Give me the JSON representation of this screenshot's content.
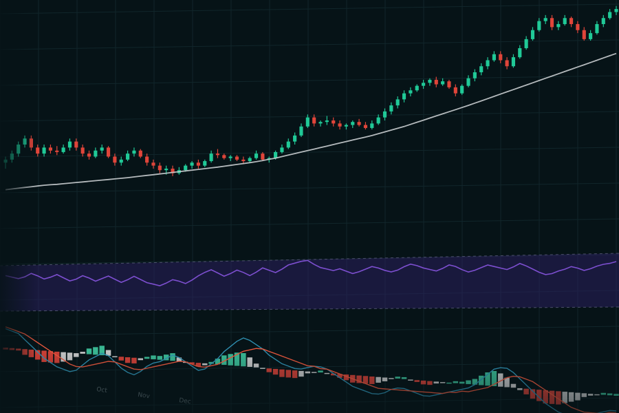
{
  "colors": {
    "background": "#061317",
    "grid": "#11262b",
    "bull": "#20c997",
    "bear": "#e0453a",
    "moving_average": "#c9cdcf",
    "oscillator": "#7d4fd0",
    "oscillator_band": "#2a1f5c",
    "macd_line": "#2f8fb0",
    "signal_line": "#e8573d",
    "hist_pos": "#3fc9a0",
    "hist_neg": "#e0453a",
    "hist_fade": "#d7d7d7"
  },
  "chart_data": [
    {
      "type": "candlestick",
      "panel": "price",
      "candles": [
        {
          "o": 52,
          "h": 56,
          "l": 48,
          "c": 54
        },
        {
          "o": 54,
          "h": 60,
          "l": 52,
          "c": 58
        },
        {
          "o": 58,
          "h": 66,
          "l": 56,
          "c": 64
        },
        {
          "o": 64,
          "h": 70,
          "l": 62,
          "c": 68
        },
        {
          "o": 68,
          "h": 70,
          "l": 60,
          "c": 62
        },
        {
          "o": 62,
          "h": 64,
          "l": 56,
          "c": 58
        },
        {
          "o": 58,
          "h": 64,
          "l": 56,
          "c": 62
        },
        {
          "o": 62,
          "h": 64,
          "l": 58,
          "c": 60
        },
        {
          "o": 60,
          "h": 63,
          "l": 57,
          "c": 59
        },
        {
          "o": 59,
          "h": 64,
          "l": 58,
          "c": 62
        },
        {
          "o": 62,
          "h": 68,
          "l": 60,
          "c": 66
        },
        {
          "o": 66,
          "h": 68,
          "l": 60,
          "c": 62
        },
        {
          "o": 62,
          "h": 64,
          "l": 56,
          "c": 58
        },
        {
          "o": 58,
          "h": 60,
          "l": 54,
          "c": 56
        },
        {
          "o": 56,
          "h": 62,
          "l": 55,
          "c": 60
        },
        {
          "o": 60,
          "h": 64,
          "l": 58,
          "c": 62
        },
        {
          "o": 62,
          "h": 63,
          "l": 55,
          "c": 56
        },
        {
          "o": 56,
          "h": 58,
          "l": 50,
          "c": 52
        },
        {
          "o": 52,
          "h": 56,
          "l": 50,
          "c": 54
        },
        {
          "o": 54,
          "h": 60,
          "l": 53,
          "c": 58
        },
        {
          "o": 58,
          "h": 62,
          "l": 56,
          "c": 60
        },
        {
          "o": 60,
          "h": 61,
          "l": 55,
          "c": 56
        },
        {
          "o": 56,
          "h": 58,
          "l": 50,
          "c": 52
        },
        {
          "o": 52,
          "h": 54,
          "l": 48,
          "c": 50
        },
        {
          "o": 50,
          "h": 52,
          "l": 45,
          "c": 47
        },
        {
          "o": 47,
          "h": 50,
          "l": 44,
          "c": 48
        },
        {
          "o": 48,
          "h": 50,
          "l": 43,
          "c": 45
        },
        {
          "o": 45,
          "h": 49,
          "l": 44,
          "c": 47
        },
        {
          "o": 47,
          "h": 51,
          "l": 46,
          "c": 50
        },
        {
          "o": 50,
          "h": 53,
          "l": 48,
          "c": 52
        },
        {
          "o": 52,
          "h": 54,
          "l": 48,
          "c": 50
        },
        {
          "o": 50,
          "h": 54,
          "l": 49,
          "c": 53
        },
        {
          "o": 53,
          "h": 60,
          "l": 52,
          "c": 58
        },
        {
          "o": 58,
          "h": 61,
          "l": 55,
          "c": 57
        },
        {
          "o": 57,
          "h": 58,
          "l": 54,
          "c": 55
        },
        {
          "o": 55,
          "h": 57,
          "l": 53,
          "c": 56
        },
        {
          "o": 56,
          "h": 57,
          "l": 53,
          "c": 54
        },
        {
          "o": 54,
          "h": 56,
          "l": 51,
          "c": 53
        },
        {
          "o": 53,
          "h": 56,
          "l": 52,
          "c": 55
        },
        {
          "o": 55,
          "h": 60,
          "l": 54,
          "c": 58
        },
        {
          "o": 58,
          "h": 59,
          "l": 53,
          "c": 54
        },
        {
          "o": 54,
          "h": 56,
          "l": 52,
          "c": 55
        },
        {
          "o": 55,
          "h": 60,
          "l": 54,
          "c": 59
        },
        {
          "o": 59,
          "h": 64,
          "l": 58,
          "c": 62
        },
        {
          "o": 62,
          "h": 68,
          "l": 61,
          "c": 66
        },
        {
          "o": 66,
          "h": 72,
          "l": 64,
          "c": 70
        },
        {
          "o": 70,
          "h": 78,
          "l": 69,
          "c": 76
        },
        {
          "o": 76,
          "h": 84,
          "l": 75,
          "c": 82
        },
        {
          "o": 82,
          "h": 84,
          "l": 76,
          "c": 78
        },
        {
          "o": 78,
          "h": 80,
          "l": 76,
          "c": 79
        },
        {
          "o": 79,
          "h": 83,
          "l": 77,
          "c": 80
        },
        {
          "o": 80,
          "h": 82,
          "l": 76,
          "c": 78
        },
        {
          "o": 78,
          "h": 80,
          "l": 74,
          "c": 76
        },
        {
          "o": 76,
          "h": 78,
          "l": 74,
          "c": 77
        },
        {
          "o": 77,
          "h": 80,
          "l": 75,
          "c": 79
        },
        {
          "o": 79,
          "h": 81,
          "l": 76,
          "c": 77
        },
        {
          "o": 77,
          "h": 79,
          "l": 74,
          "c": 75
        },
        {
          "o": 75,
          "h": 80,
          "l": 74,
          "c": 78
        },
        {
          "o": 78,
          "h": 84,
          "l": 77,
          "c": 82
        },
        {
          "o": 82,
          "h": 88,
          "l": 80,
          "c": 86
        },
        {
          "o": 86,
          "h": 92,
          "l": 84,
          "c": 90
        },
        {
          "o": 90,
          "h": 96,
          "l": 88,
          "c": 94
        },
        {
          "o": 94,
          "h": 100,
          "l": 92,
          "c": 98
        },
        {
          "o": 98,
          "h": 102,
          "l": 96,
          "c": 100
        },
        {
          "o": 100,
          "h": 104,
          "l": 99,
          "c": 103
        },
        {
          "o": 103,
          "h": 107,
          "l": 101,
          "c": 105
        },
        {
          "o": 105,
          "h": 108,
          "l": 103,
          "c": 107
        },
        {
          "o": 107,
          "h": 109,
          "l": 102,
          "c": 104
        },
        {
          "o": 104,
          "h": 108,
          "l": 103,
          "c": 106
        },
        {
          "o": 106,
          "h": 107,
          "l": 101,
          "c": 102
        },
        {
          "o": 102,
          "h": 104,
          "l": 96,
          "c": 98
        },
        {
          "o": 98,
          "h": 104,
          "l": 97,
          "c": 103
        },
        {
          "o": 103,
          "h": 110,
          "l": 102,
          "c": 108
        },
        {
          "o": 108,
          "h": 114,
          "l": 106,
          "c": 112
        },
        {
          "o": 112,
          "h": 118,
          "l": 110,
          "c": 116
        },
        {
          "o": 116,
          "h": 122,
          "l": 114,
          "c": 120
        },
        {
          "o": 120,
          "h": 126,
          "l": 119,
          "c": 124
        },
        {
          "o": 124,
          "h": 126,
          "l": 118,
          "c": 120
        },
        {
          "o": 120,
          "h": 122,
          "l": 114,
          "c": 116
        },
        {
          "o": 116,
          "h": 124,
          "l": 115,
          "c": 122
        },
        {
          "o": 122,
          "h": 130,
          "l": 121,
          "c": 128
        },
        {
          "o": 128,
          "h": 136,
          "l": 127,
          "c": 134
        },
        {
          "o": 134,
          "h": 142,
          "l": 133,
          "c": 140
        },
        {
          "o": 140,
          "h": 148,
          "l": 139,
          "c": 146
        },
        {
          "o": 146,
          "h": 150,
          "l": 144,
          "c": 148
        },
        {
          "o": 148,
          "h": 150,
          "l": 140,
          "c": 142
        },
        {
          "o": 142,
          "h": 146,
          "l": 140,
          "c": 144
        },
        {
          "o": 144,
          "h": 150,
          "l": 143,
          "c": 148
        },
        {
          "o": 148,
          "h": 149,
          "l": 142,
          "c": 144
        },
        {
          "o": 144,
          "h": 146,
          "l": 138,
          "c": 140
        },
        {
          "o": 140,
          "h": 142,
          "l": 133,
          "c": 134
        },
        {
          "o": 134,
          "h": 140,
          "l": 133,
          "c": 138
        },
        {
          "o": 138,
          "h": 146,
          "l": 137,
          "c": 144
        },
        {
          "o": 144,
          "h": 150,
          "l": 142,
          "c": 148
        },
        {
          "o": 148,
          "h": 154,
          "l": 147,
          "c": 152
        },
        {
          "o": 152,
          "h": 156,
          "l": 150,
          "c": 154
        }
      ],
      "moving_average": [
        34,
        34.5,
        35,
        35.5,
        36,
        36.5,
        37,
        37.3,
        37.6,
        38,
        38.4,
        38.8,
        39.2,
        39.6,
        40,
        40.4,
        40.8,
        41.2,
        41.6,
        42,
        42.5,
        43,
        43.5,
        44,
        44.5,
        45,
        45.5,
        46,
        46.5,
        47,
        47.5,
        48,
        48.5,
        49,
        49.6,
        50.2,
        50.8,
        51.4,
        52,
        52.6,
        53.4,
        54.2,
        55,
        56,
        57,
        58,
        59,
        60,
        61,
        62,
        63,
        64,
        65,
        66,
        67,
        68,
        69,
        70,
        71.2,
        72.4,
        73.6,
        74.8,
        76,
        77.4,
        78.8,
        80.2,
        81.6,
        83,
        84.4,
        85.8,
        87.2,
        88.6,
        90,
        91.5,
        93,
        94.5,
        96,
        97.5,
        99,
        100.5,
        102,
        103.5,
        105,
        106.5,
        108,
        109.5,
        111,
        112.5,
        114,
        115.5,
        117,
        118.5,
        120,
        121.5,
        123,
        124.5
      ],
      "ylim": [
        0,
        160
      ],
      "grid": true
    },
    {
      "type": "line",
      "panel": "oscillator",
      "values": [
        58,
        56,
        54,
        56,
        60,
        57,
        53,
        55,
        58,
        54,
        50,
        52,
        56,
        53,
        49,
        52,
        55,
        51,
        47,
        50,
        54,
        50,
        46,
        44,
        42,
        45,
        49,
        47,
        44,
        48,
        53,
        57,
        60,
        56,
        52,
        55,
        59,
        56,
        52,
        56,
        61,
        58,
        55,
        59,
        64,
        66,
        68,
        69,
        64,
        60,
        58,
        56,
        58,
        55,
        52,
        54,
        57,
        60,
        58,
        55,
        53,
        55,
        59,
        62,
        60,
        57,
        55,
        53,
        56,
        60,
        58,
        54,
        51,
        53,
        56,
        59,
        57,
        55,
        53,
        56,
        60,
        57,
        53,
        49,
        46,
        47,
        50,
        52,
        55,
        53,
        50,
        52,
        55,
        57,
        58,
        60
      ],
      "ylim": [
        0,
        100
      ],
      "band": [
        30,
        70
      ],
      "grid": true
    },
    {
      "type": "line+bar",
      "panel": "macd",
      "macd_line": [
        1.0,
        0.9,
        0.8,
        0.5,
        0.2,
        -0.1,
        -0.4,
        -0.6,
        -0.8,
        -0.9,
        -1.0,
        -0.9,
        -0.6,
        -0.3,
        -0.1,
        0.1,
        0.0,
        -0.3,
        -0.6,
        -0.8,
        -0.9,
        -0.7,
        -0.4,
        -0.2,
        -0.1,
        0.1,
        0.3,
        0.2,
        0.0,
        -0.2,
        -0.4,
        -0.3,
        0.0,
        0.3,
        0.7,
        1.0,
        1.3,
        1.5,
        1.4,
        1.2,
        1.0,
        0.7,
        0.5,
        0.3,
        0.2,
        0.1,
        0.1,
        0.2,
        0.3,
        0.3,
        0.2,
        0.0,
        -0.2,
        -0.4,
        -0.6,
        -0.7,
        -0.8,
        -0.9,
        -0.9,
        -0.8,
        -0.6,
        -0.5,
        -0.5,
        -0.6,
        -0.7,
        -0.8,
        -0.8,
        -0.7,
        -0.6,
        -0.5,
        -0.4,
        -0.3,
        -0.2,
        0.0,
        0.3,
        0.6,
        0.9,
        1.0,
        1.0,
        0.8,
        0.5,
        0.2,
        -0.1,
        -0.4,
        -0.7,
        -0.9,
        -1.1,
        -1.2,
        -1.3,
        -1.3,
        -1.2,
        -1.1,
        -1.0,
        -0.9,
        -0.8,
        -0.8
      ],
      "signal_line": [
        1.1,
        1.0,
        0.9,
        0.8,
        0.6,
        0.4,
        0.2,
        0.0,
        -0.2,
        -0.4,
        -0.6,
        -0.7,
        -0.7,
        -0.6,
        -0.5,
        -0.4,
        -0.3,
        -0.3,
        -0.4,
        -0.5,
        -0.6,
        -0.6,
        -0.5,
        -0.4,
        -0.3,
        -0.2,
        -0.1,
        0.0,
        0.0,
        -0.1,
        -0.2,
        -0.2,
        -0.1,
        0.0,
        0.2,
        0.4,
        0.6,
        0.8,
        0.9,
        1.0,
        1.0,
        0.9,
        0.8,
        0.7,
        0.6,
        0.5,
        0.4,
        0.3,
        0.3,
        0.2,
        0.2,
        0.1,
        0.0,
        -0.1,
        -0.2,
        -0.3,
        -0.4,
        -0.5,
        -0.6,
        -0.6,
        -0.6,
        -0.6,
        -0.6,
        -0.6,
        -0.6,
        -0.6,
        -0.6,
        -0.6,
        -0.6,
        -0.5,
        -0.5,
        -0.4,
        -0.4,
        -0.3,
        -0.2,
        -0.1,
        0.1,
        0.3,
        0.5,
        0.6,
        0.6,
        0.5,
        0.4,
        0.2,
        0.0,
        -0.2,
        -0.4,
        -0.6,
        -0.8,
        -0.9,
        -1.0,
        -1.0,
        -1.0,
        -1.0,
        -0.9,
        -0.9
      ],
      "histogram": [
        -0.1,
        -0.1,
        -0.1,
        -0.3,
        -0.4,
        -0.5,
        -0.6,
        -0.6,
        -0.6,
        -0.5,
        -0.4,
        -0.2,
        0.1,
        0.3,
        0.4,
        0.5,
        0.3,
        0.0,
        -0.2,
        -0.3,
        -0.3,
        -0.1,
        0.1,
        0.2,
        0.2,
        0.3,
        0.4,
        0.2,
        0.0,
        -0.1,
        -0.2,
        -0.1,
        0.1,
        0.3,
        0.5,
        0.6,
        0.7,
        0.7,
        0.5,
        0.2,
        0.0,
        -0.2,
        -0.3,
        -0.4,
        -0.4,
        -0.4,
        -0.3,
        -0.1,
        0.0,
        0.1,
        0.0,
        -0.1,
        -0.2,
        -0.3,
        -0.4,
        -0.4,
        -0.4,
        -0.4,
        -0.3,
        -0.2,
        0.0,
        0.1,
        0.1,
        0.0,
        -0.1,
        -0.2,
        -0.2,
        -0.1,
        0.0,
        0.0,
        0.1,
        0.1,
        0.2,
        0.3,
        0.5,
        0.7,
        0.8,
        0.7,
        0.5,
        0.2,
        -0.1,
        -0.3,
        -0.5,
        -0.6,
        -0.7,
        -0.7,
        -0.7,
        -0.6,
        -0.5,
        -0.4,
        -0.2,
        -0.1,
        0.0,
        0.1,
        0.1,
        0.1
      ],
      "ylim": [
        -2,
        2
      ],
      "grid": true,
      "tick_labels": [
        "",
        "",
        "Oct",
        "Nov",
        "Dec",
        "",
        ""
      ]
    }
  ]
}
